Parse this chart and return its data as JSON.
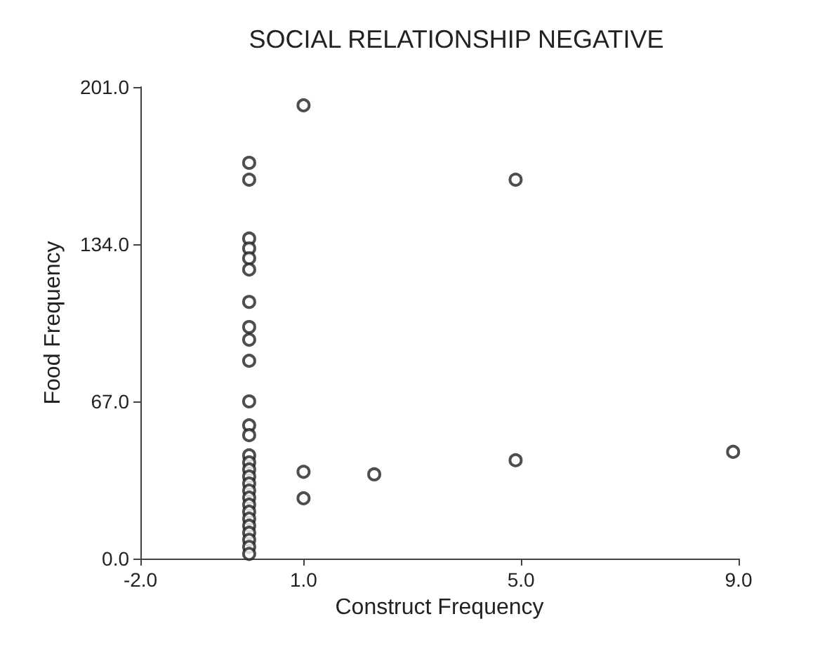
{
  "chart_data": {
    "type": "scatter",
    "title": "SOCIAL RELATIONSHIP NEGATIVE",
    "xlabel": "Construct Frequency",
    "ylabel": "Food Frequency",
    "x": [
      0,
      0,
      0,
      0,
      0,
      0,
      0,
      0,
      0,
      0,
      0,
      0,
      0,
      0,
      0,
      0,
      0,
      0,
      0,
      0,
      0,
      0,
      0,
      0,
      0,
      0,
      0,
      0,
      1,
      1,
      1,
      2.3,
      4.9,
      4.9,
      8.9
    ],
    "values": [
      168.7,
      161.5,
      136.4,
      132.2,
      128,
      123.2,
      109.4,
      98.7,
      93.3,
      84.3,
      67,
      56.8,
      52.6,
      44,
      41,
      38,
      35,
      32,
      29,
      26,
      23,
      20,
      17,
      14,
      11,
      8,
      5,
      2,
      193.2,
      37,
      25.7,
      35.9,
      161.5,
      41.9,
      45.5
    ],
    "color": "#222222",
    "marker": "circle",
    "grid": false,
    "xlim": [
      -2,
      9
    ],
    "xticks": [
      {
        "value": -2,
        "label": "-2.0"
      },
      {
        "value": 1,
        "label": "1.0"
      },
      {
        "value": 5,
        "label": "5.0"
      },
      {
        "value": 9,
        "label": "9.0"
      }
    ],
    "ylim": [
      0,
      201
    ],
    "yticks": [
      {
        "value": 0,
        "label": "0.0"
      },
      {
        "value": 67,
        "label": "67.0"
      },
      {
        "value": 134,
        "label": "134.0"
      },
      {
        "value": 201,
        "label": "201.0"
      }
    ]
  }
}
